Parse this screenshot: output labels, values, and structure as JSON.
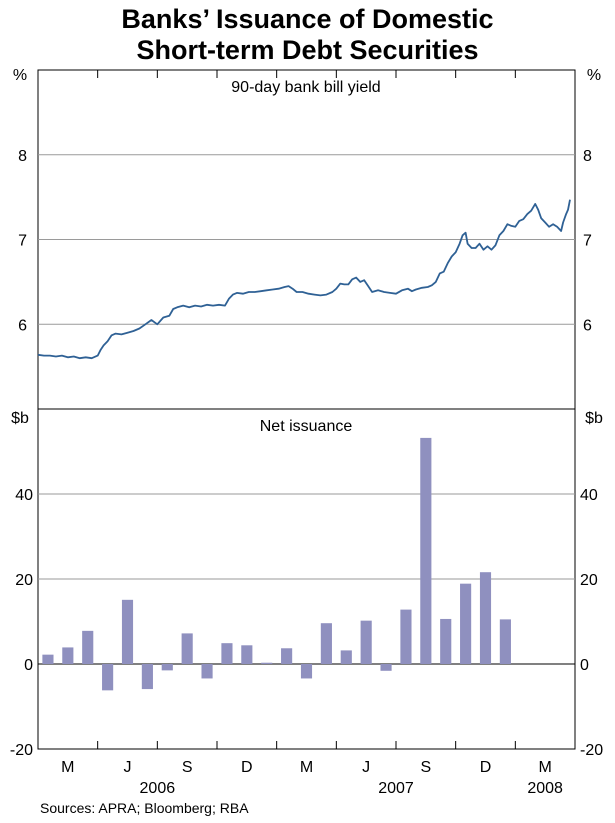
{
  "title_lines": [
    "Banks’ Issuance of Domestic",
    "Short-term Debt Securities"
  ],
  "source": "Sources: APRA; Bloomberg; RBA",
  "colors": {
    "line": "#2f6195",
    "bar": "#8f90bf",
    "grid": "#9a9a9a",
    "axis": "#000000"
  },
  "chart_data": [
    {
      "type": "line",
      "panel": "top",
      "title": "90-day bank bill yield",
      "ylabel_left": "%",
      "ylabel_right": "%",
      "ylim": [
        5,
        9
      ],
      "yticks": [
        6,
        7,
        8
      ],
      "ytick_labels": [
        "6",
        "7",
        "8"
      ],
      "x_unit": "months since start of Feb 2006",
      "series": [
        {
          "name": "90-day bank bill yield",
          "points": [
            [
              0,
              5.64
            ],
            [
              0.3,
              5.63
            ],
            [
              0.6,
              5.63
            ],
            [
              0.9,
              5.62
            ],
            [
              1.2,
              5.63
            ],
            [
              1.5,
              5.61
            ],
            [
              1.8,
              5.62
            ],
            [
              2.1,
              5.6
            ],
            [
              2.4,
              5.61
            ],
            [
              2.7,
              5.6
            ],
            [
              3.0,
              5.63
            ],
            [
              3.15,
              5.7
            ],
            [
              3.3,
              5.75
            ],
            [
              3.5,
              5.8
            ],
            [
              3.7,
              5.87
            ],
            [
              3.9,
              5.89
            ],
            [
              4.2,
              5.88
            ],
            [
              4.5,
              5.9
            ],
            [
              4.8,
              5.92
            ],
            [
              5.1,
              5.95
            ],
            [
              5.4,
              6.0
            ],
            [
              5.7,
              6.05
            ],
            [
              6.0,
              6.0
            ],
            [
              6.3,
              6.08
            ],
            [
              6.6,
              6.1
            ],
            [
              6.8,
              6.18
            ],
            [
              7.0,
              6.2
            ],
            [
              7.3,
              6.22
            ],
            [
              7.6,
              6.2
            ],
            [
              7.9,
              6.22
            ],
            [
              8.2,
              6.21
            ],
            [
              8.5,
              6.23
            ],
            [
              8.8,
              6.22
            ],
            [
              9.1,
              6.23
            ],
            [
              9.4,
              6.22
            ],
            [
              9.6,
              6.3
            ],
            [
              9.8,
              6.35
            ],
            [
              10.0,
              6.37
            ],
            [
              10.3,
              6.36
            ],
            [
              10.6,
              6.38
            ],
            [
              10.9,
              6.38
            ],
            [
              11.2,
              6.39
            ],
            [
              11.5,
              6.4
            ],
            [
              11.8,
              6.41
            ],
            [
              12.1,
              6.42
            ],
            [
              12.4,
              6.44
            ],
            [
              12.6,
              6.45
            ],
            [
              12.8,
              6.42
            ],
            [
              13.0,
              6.38
            ],
            [
              13.3,
              6.38
            ],
            [
              13.6,
              6.36
            ],
            [
              13.9,
              6.35
            ],
            [
              14.2,
              6.34
            ],
            [
              14.5,
              6.35
            ],
            [
              14.8,
              6.38
            ],
            [
              15.0,
              6.42
            ],
            [
              15.2,
              6.48
            ],
            [
              15.4,
              6.47
            ],
            [
              15.6,
              6.47
            ],
            [
              15.8,
              6.53
            ],
            [
              16.0,
              6.55
            ],
            [
              16.2,
              6.5
            ],
            [
              16.4,
              6.52
            ],
            [
              16.6,
              6.45
            ],
            [
              16.8,
              6.38
            ],
            [
              17.1,
              6.4
            ],
            [
              17.4,
              6.38
            ],
            [
              17.7,
              6.37
            ],
            [
              18.0,
              6.36
            ],
            [
              18.3,
              6.4
            ],
            [
              18.6,
              6.42
            ],
            [
              18.8,
              6.39
            ],
            [
              19.0,
              6.41
            ],
            [
              19.3,
              6.43
            ],
            [
              19.6,
              6.44
            ],
            [
              19.8,
              6.46
            ],
            [
              20.0,
              6.5
            ],
            [
              20.2,
              6.6
            ],
            [
              20.4,
              6.62
            ],
            [
              20.6,
              6.72
            ],
            [
              20.8,
              6.8
            ],
            [
              21.0,
              6.85
            ],
            [
              21.2,
              6.95
            ],
            [
              21.35,
              7.05
            ],
            [
              21.5,
              7.08
            ],
            [
              21.6,
              6.95
            ],
            [
              21.8,
              6.9
            ],
            [
              22.0,
              6.9
            ],
            [
              22.2,
              6.95
            ],
            [
              22.4,
              6.88
            ],
            [
              22.6,
              6.92
            ],
            [
              22.8,
              6.88
            ],
            [
              23.0,
              6.93
            ],
            [
              23.2,
              7.05
            ],
            [
              23.4,
              7.1
            ],
            [
              23.6,
              7.18
            ],
            [
              23.8,
              7.16
            ],
            [
              24.0,
              7.15
            ],
            [
              24.2,
              7.22
            ],
            [
              24.4,
              7.24
            ],
            [
              24.6,
              7.3
            ],
            [
              24.8,
              7.34
            ],
            [
              25.0,
              7.42
            ],
            [
              25.15,
              7.35
            ],
            [
              25.3,
              7.25
            ],
            [
              25.5,
              7.2
            ],
            [
              25.7,
              7.15
            ],
            [
              25.9,
              7.18
            ],
            [
              26.1,
              7.15
            ],
            [
              26.3,
              7.1
            ],
            [
              26.4,
              7.2
            ],
            [
              26.55,
              7.3
            ],
            [
              26.65,
              7.35
            ],
            [
              26.75,
              7.47
            ]
          ]
        }
      ]
    },
    {
      "type": "bar",
      "panel": "bottom",
      "title": "Net issuance",
      "ylabel_left": "$b",
      "ylabel_right": "$b",
      "ylim": [
        -20,
        60
      ],
      "yticks": [
        -20,
        0,
        20,
        40
      ],
      "ytick_labels": [
        "-20",
        "0",
        "20",
        "40"
      ],
      "x_unit": "month index (0 = Feb 2006)",
      "values": [
        {
          "month": 0,
          "value": 2.2
        },
        {
          "month": 1,
          "value": 3.9
        },
        {
          "month": 2,
          "value": 7.8
        },
        {
          "month": 3,
          "value": -6.2
        },
        {
          "month": 4,
          "value": 15.1
        },
        {
          "month": 5,
          "value": -5.9
        },
        {
          "month": 6,
          "value": -1.5
        },
        {
          "month": 7,
          "value": 7.2
        },
        {
          "month": 8,
          "value": -3.4
        },
        {
          "month": 9,
          "value": 4.9
        },
        {
          "month": 10,
          "value": 4.4
        },
        {
          "month": 11,
          "value": 0.3
        },
        {
          "month": 12,
          "value": 3.7
        },
        {
          "month": 13,
          "value": -3.4
        },
        {
          "month": 14,
          "value": 9.6
        },
        {
          "month": 15,
          "value": 3.2
        },
        {
          "month": 16,
          "value": 10.2
        },
        {
          "month": 17,
          "value": -1.6
        },
        {
          "month": 18,
          "value": 12.8
        },
        {
          "month": 19,
          "value": 53.2
        },
        {
          "month": 20,
          "value": 10.6
        },
        {
          "month": 21,
          "value": 18.9
        },
        {
          "month": 22,
          "value": 21.6
        },
        {
          "month": 23,
          "value": 10.5
        }
      ]
    }
  ],
  "x_axis": {
    "month_labels": [
      {
        "label": "M",
        "month": 1.5
      },
      {
        "label": "J",
        "month": 4.5
      },
      {
        "label": "S",
        "month": 7.5
      },
      {
        "label": "D",
        "month": 10.5
      },
      {
        "label": "M",
        "month": 13.5
      },
      {
        "label": "J",
        "month": 16.5
      },
      {
        "label": "S",
        "month": 19.5
      },
      {
        "label": "D",
        "month": 22.5
      },
      {
        "label": "M",
        "month": 25.5
      }
    ],
    "quarter_ticks": [
      3,
      6,
      9,
      12,
      15,
      18,
      21,
      24
    ],
    "year_labels": [
      {
        "label": "2006",
        "month": 6.0
      },
      {
        "label": "2007",
        "month": 18.0
      },
      {
        "label": "2008",
        "month": 25.5
      }
    ]
  }
}
